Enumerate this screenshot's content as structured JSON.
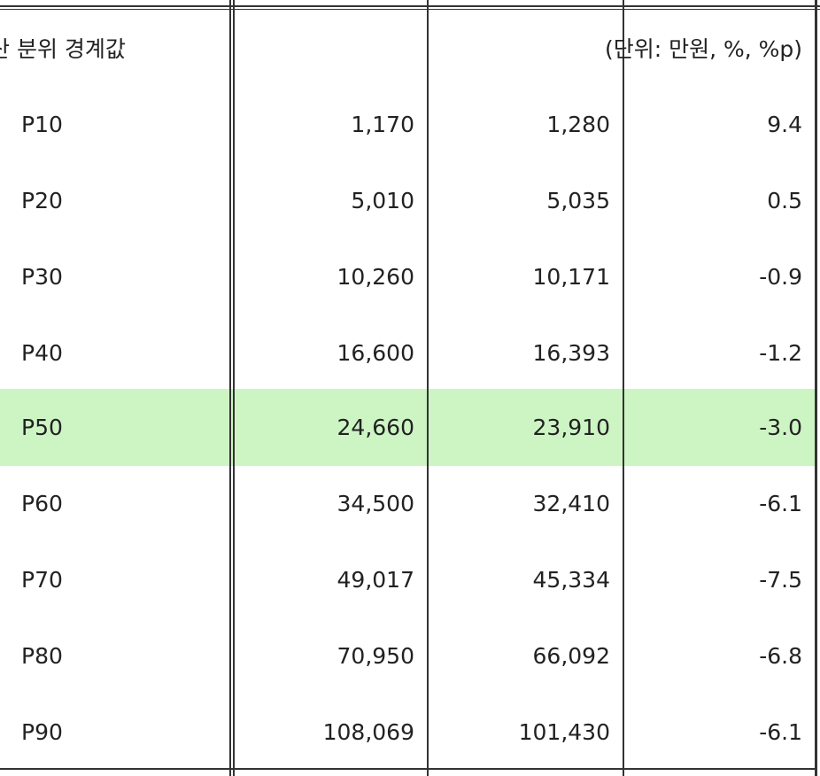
{
  "header": {
    "label": "산 분위 경계값",
    "unit": "(단위: 만원, %, %p)"
  },
  "rows": [
    {
      "label": "P10",
      "v1": "1,170",
      "v2": "1,280",
      "v3": "9.4"
    },
    {
      "label": "P20",
      "v1": "5,010",
      "v2": "5,035",
      "v3": "0.5"
    },
    {
      "label": "P30",
      "v1": "10,260",
      "v2": "10,171",
      "v3": "-0.9"
    },
    {
      "label": "P40",
      "v1": "16,600",
      "v2": "16,393",
      "v3": "-1.2"
    },
    {
      "label": "P50",
      "v1": "24,660",
      "v2": "23,910",
      "v3": "-3.0"
    },
    {
      "label": "P60",
      "v1": "34,500",
      "v2": "32,410",
      "v3": "-6.1"
    },
    {
      "label": "P70",
      "v1": "49,017",
      "v2": "45,334",
      "v3": "-7.5"
    },
    {
      "label": "P80",
      "v1": "70,950",
      "v2": "66,092",
      "v3": "-6.8"
    },
    {
      "label": "P90",
      "v1": "108,069",
      "v2": "101,430",
      "v3": "-6.1"
    }
  ],
  "highlight_row_label": "P50",
  "colors": {
    "highlight": "#cdf5c4",
    "border": "#333333",
    "text": "#222222"
  }
}
